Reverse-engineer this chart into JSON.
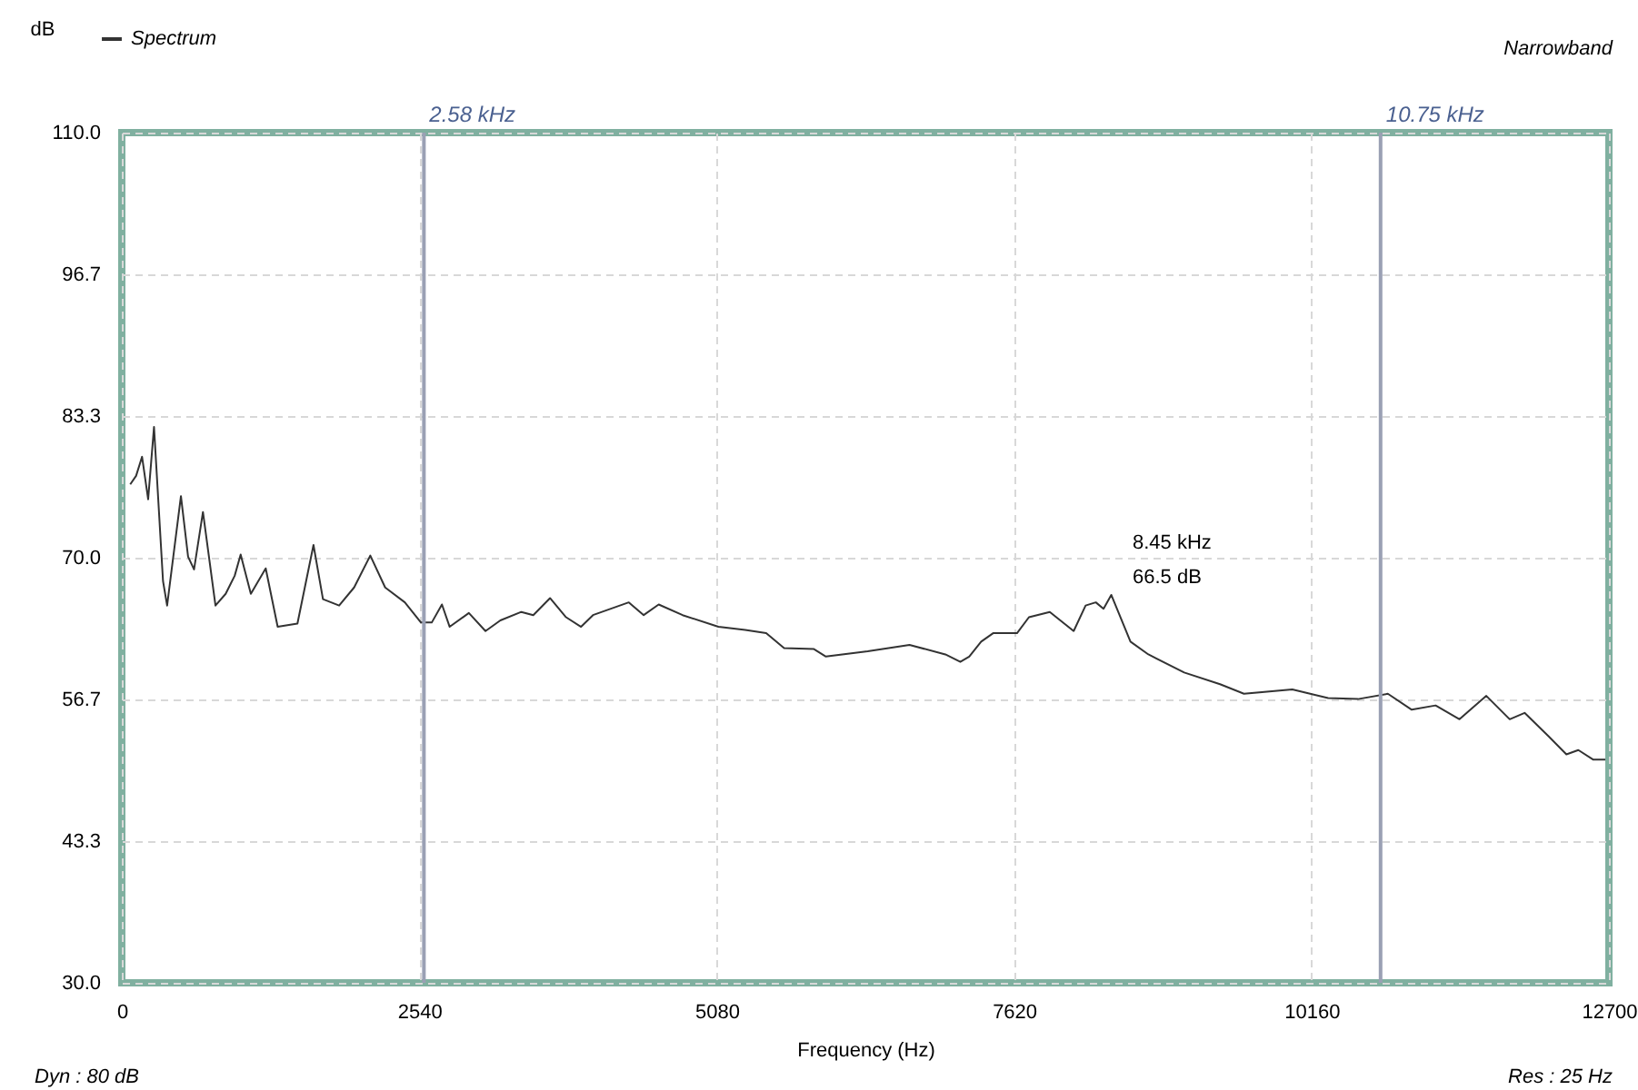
{
  "chart_data": {
    "type": "line",
    "xlabel": "Frequency (Hz)",
    "ylabel": "dB",
    "x": [
      72,
      122,
      173,
      225,
      275,
      352,
      387,
      505,
      566,
      617,
      693,
      800,
      887,
      964,
      1015,
      1102,
      1229,
      1331,
      1500,
      1637,
      1718,
      1856,
      1984,
      2122,
      2249,
      2417,
      2555,
      2647,
      2734,
      2800,
      2964,
      3106,
      3233,
      3412,
      3514,
      3657,
      3794,
      3922,
      4024,
      4330,
      4457,
      4585,
      4789,
      5095,
      5324,
      5503,
      5656,
      5911,
      6013,
      6370,
      6727,
      7033,
      7161,
      7237,
      7339,
      7441,
      7645,
      7747,
      7925,
      8129,
      8231,
      8318,
      8384,
      8450,
      8614,
      8767,
      9073,
      9379,
      9583,
      9996,
      10302,
      10557,
      10812,
      11016,
      11220,
      11424,
      11653,
      11853,
      11980,
      12184,
      12337,
      12439,
      12567,
      12669
    ],
    "series": [
      {
        "name": "Spectrum",
        "color": "#333333",
        "values": [
          76.9,
          77.7,
          79.5,
          75.5,
          82.3,
          67.8,
          65.5,
          75.8,
          70.1,
          68.9,
          74.3,
          65.5,
          66.6,
          68.3,
          70.3,
          66.6,
          69.0,
          63.5,
          63.8,
          71.2,
          66.1,
          65.5,
          67.2,
          70.2,
          67.2,
          65.8,
          63.9,
          63.9,
          65.6,
          63.5,
          64.8,
          63.1,
          64.1,
          64.9,
          64.6,
          66.2,
          64.4,
          63.5,
          64.6,
          65.8,
          64.6,
          65.6,
          64.6,
          63.5,
          63.2,
          62.9,
          61.5,
          61.4,
          60.7,
          61.2,
          61.8,
          60.9,
          60.2,
          60.7,
          62.1,
          62.9,
          62.9,
          64.4,
          64.9,
          63.1,
          65.5,
          65.8,
          65.2,
          66.5,
          62.1,
          60.9,
          59.2,
          58.1,
          57.2,
          57.6,
          56.8,
          56.7,
          57.2,
          55.7,
          56.1,
          54.8,
          57.0,
          54.8,
          55.4,
          53.2,
          51.5,
          51.9,
          51.0,
          51.0
        ]
      }
    ],
    "xlim": [
      0,
      12700
    ],
    "xticks": [
      0,
      2540,
      5080,
      7620,
      10160,
      12700
    ],
    "ylim": [
      30,
      110
    ],
    "yticks": [
      {
        "value": 30,
        "label": "30.0"
      },
      {
        "value": 43.3,
        "label": "43.3"
      },
      {
        "value": 56.7,
        "label": "56.7"
      },
      {
        "value": 70,
        "label": "70.0"
      },
      {
        "value": 83.3,
        "label": "83.3"
      },
      {
        "value": 96.7,
        "label": "96.7"
      },
      {
        "value": 110,
        "label": "110.0"
      }
    ],
    "ref_lines": [
      {
        "axis": "x",
        "value": 2580,
        "label": "2.58 kHz",
        "color": "#9aa0b4"
      },
      {
        "axis": "x",
        "value": 10750,
        "label": "10.75 kHz",
        "color": "#9aa0b4"
      }
    ],
    "annotations": [
      "8.45 kHz",
      "66.5 dB",
      "Narrowband",
      "Dyn : 80 dB",
      "Res : 25 Hz"
    ],
    "grid": true,
    "legend": "top left",
    "line_style": "solid",
    "marker": "none"
  }
}
